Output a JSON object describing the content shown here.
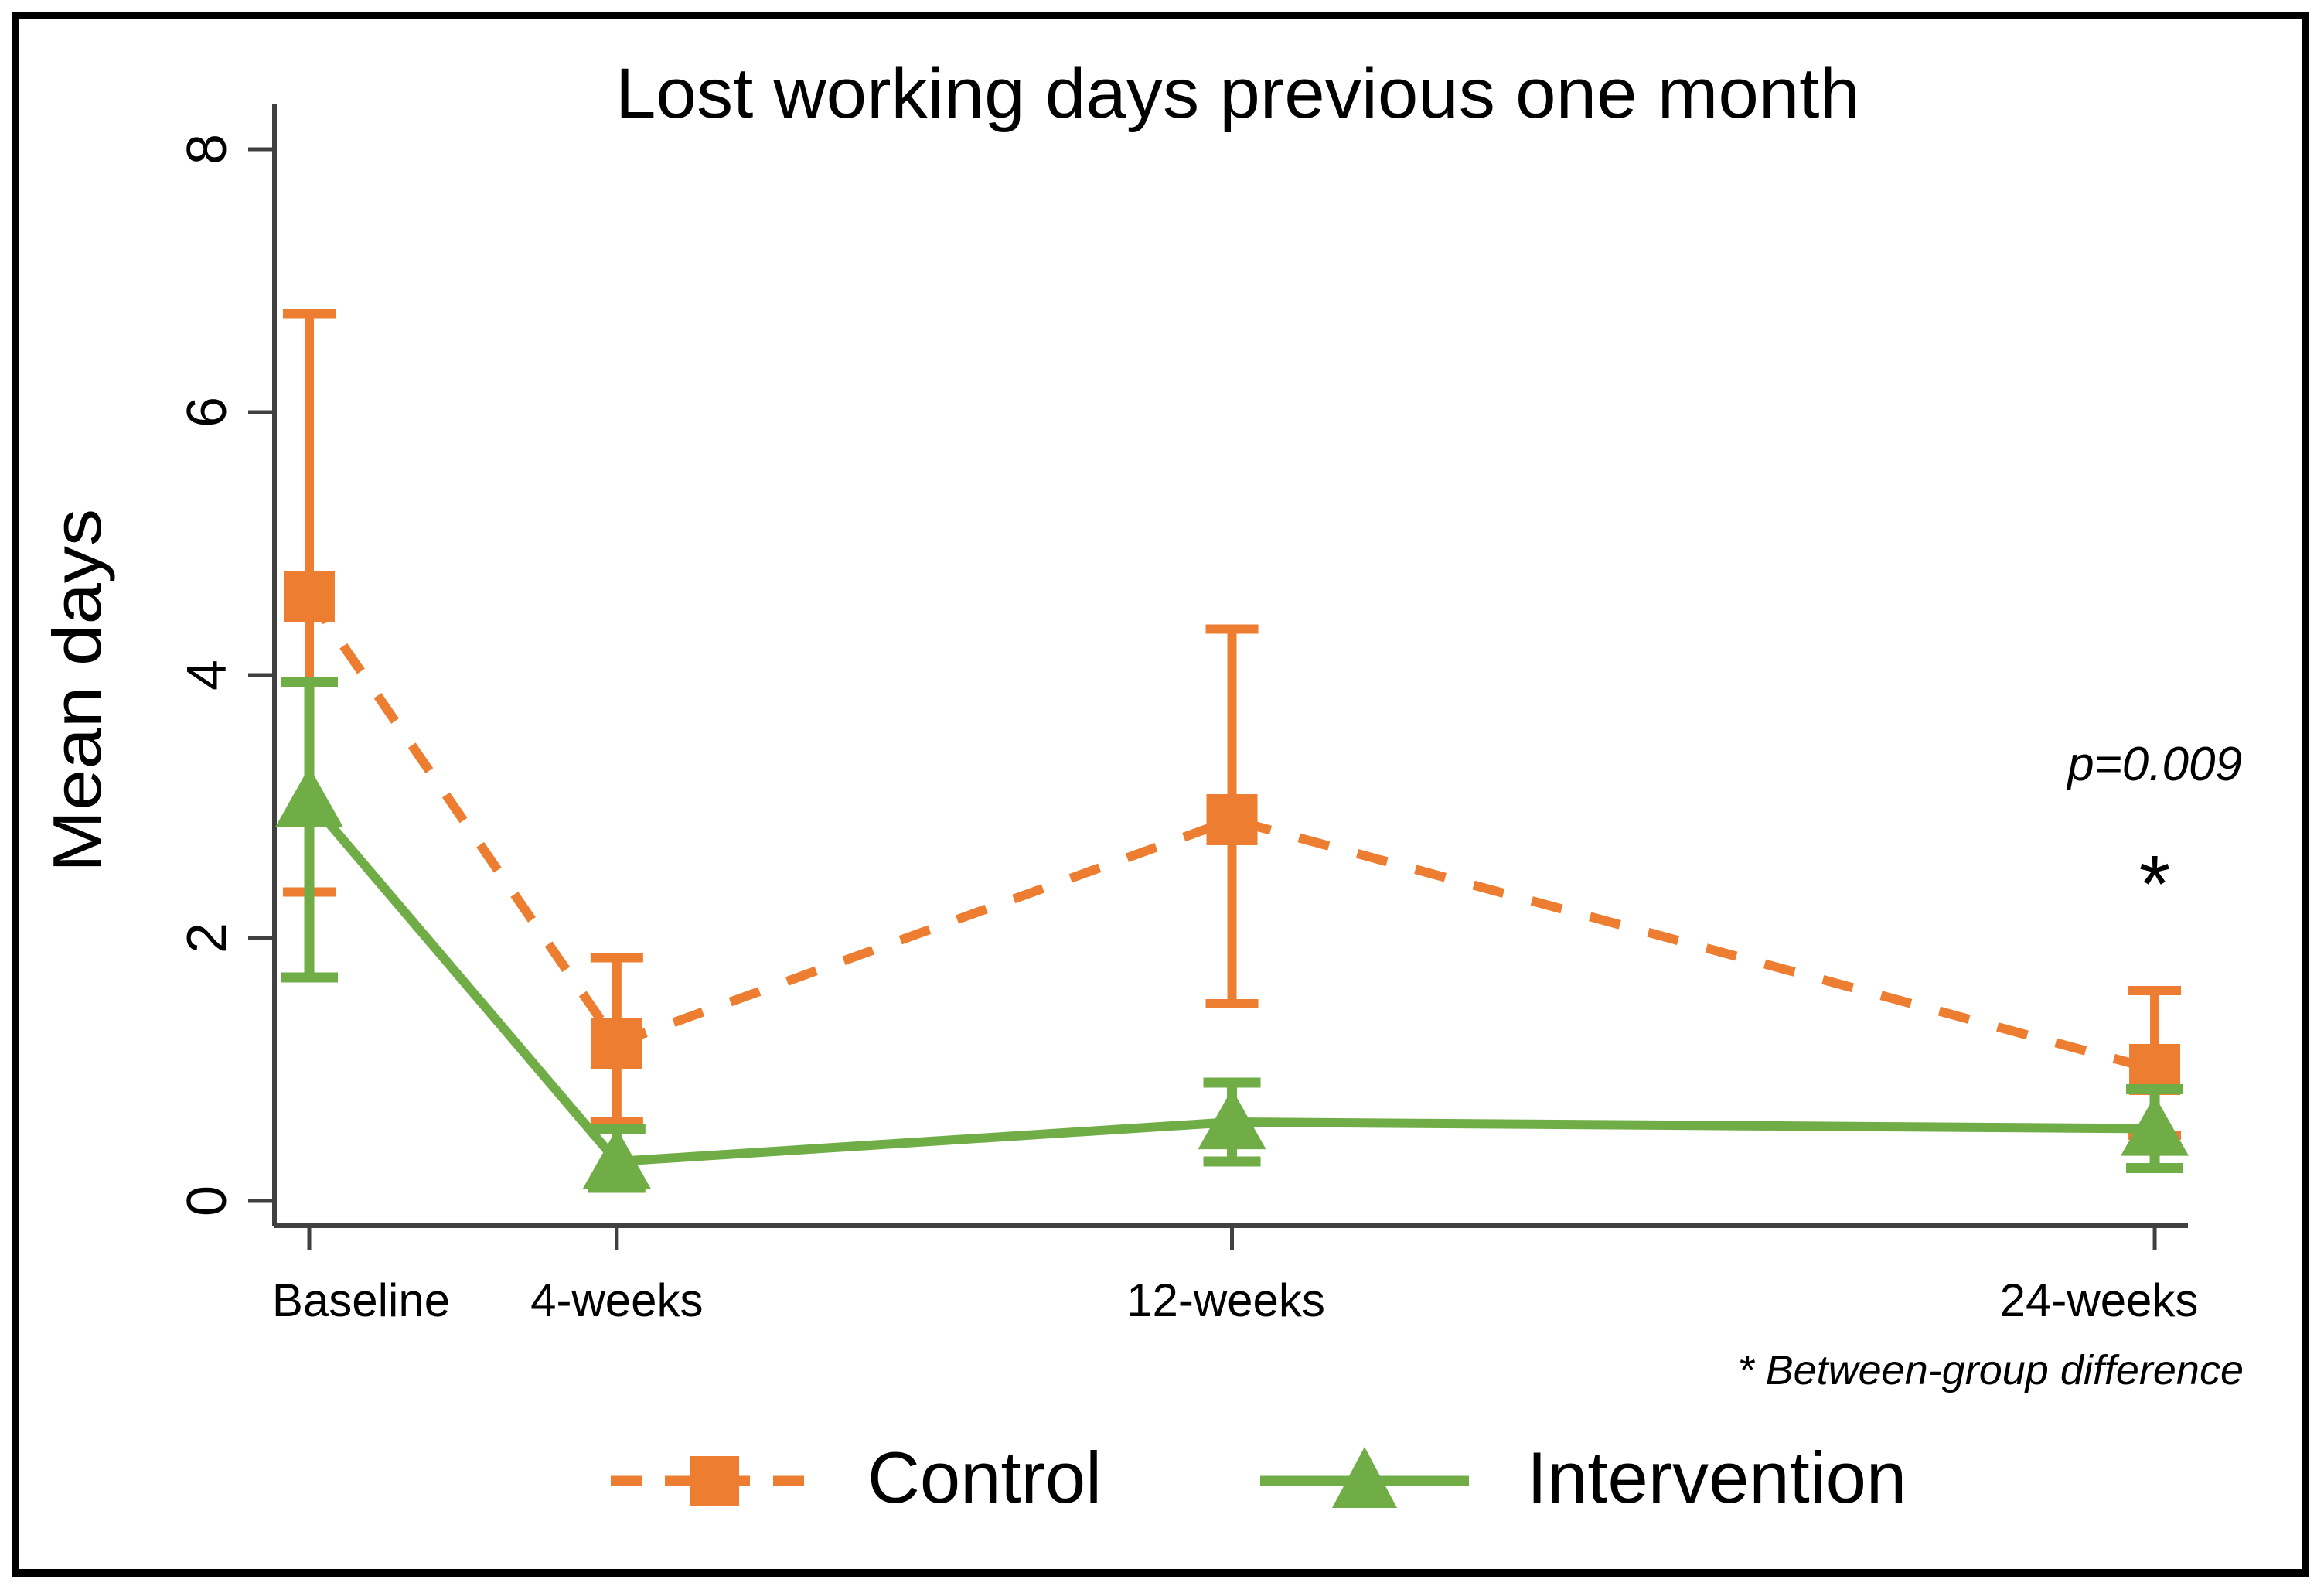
{
  "figure": {
    "background": "#ffffff",
    "border_color": "#000000",
    "axis_color": "#404040",
    "text_color": "#000000"
  },
  "chart_data": {
    "type": "line",
    "title": "Lost working days previous one month",
    "xlabel": "",
    "ylabel": "Mean days",
    "categories": [
      "Baseline",
      "4-weeks",
      "12-weeks",
      "24-weeks"
    ],
    "x_weeks": [
      0,
      4,
      12,
      24
    ],
    "y_ticks": [
      0,
      2,
      4,
      6,
      8
    ],
    "ylim": [
      0,
      8.5
    ],
    "grid": false,
    "legend_position": "bottom-center",
    "error_bars": "95% CI",
    "series": [
      {
        "name": "Control",
        "color": "#ED7D31",
        "line_style": "dashed",
        "marker": "square",
        "values": [
          4.6,
          1.2,
          2.9,
          1.0
        ],
        "ci_low": [
          2.35,
          0.6,
          1.5,
          0.5
        ],
        "ci_high": [
          6.75,
          1.85,
          4.35,
          1.6
        ]
      },
      {
        "name": "Intervention",
        "color": "#70AD47",
        "line_style": "solid",
        "marker": "triangle",
        "values": [
          3.05,
          0.3,
          0.6,
          0.55
        ],
        "ci_low": [
          1.7,
          0.1,
          0.3,
          0.25
        ],
        "ci_high": [
          3.95,
          0.55,
          0.9,
          0.85
        ]
      }
    ],
    "annotations": [
      {
        "text": "p=0.009",
        "x_week": 24,
        "y": 3.2,
        "style": "italic"
      },
      {
        "text": "*",
        "x_week": 24,
        "y": 2.2,
        "style": "normal"
      }
    ],
    "footnote": "* Between-group difference"
  }
}
